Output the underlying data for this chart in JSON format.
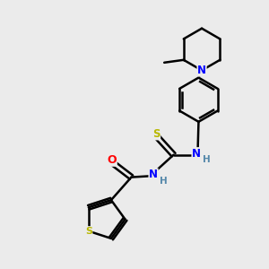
{
  "bg_color": "#ebebeb",
  "atom_colors": {
    "C": "#000000",
    "N": "#0000ff",
    "O": "#ff0000",
    "S": "#b8b800",
    "H": "#5588aa"
  },
  "bond_color": "#000000",
  "bond_width": 1.8,
  "dbo": 0.09
}
